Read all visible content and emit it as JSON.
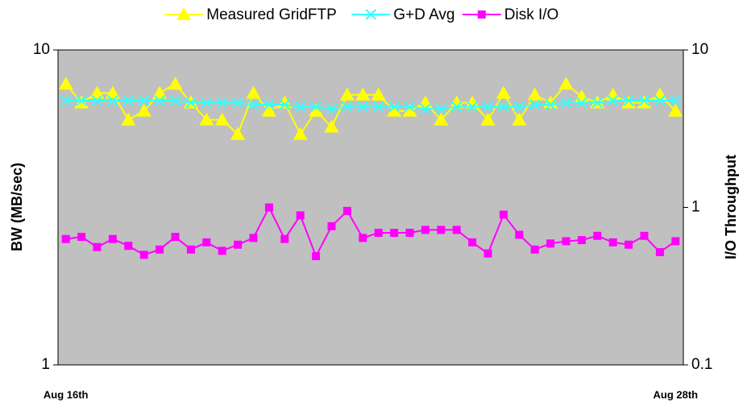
{
  "chart_data": {
    "type": "line",
    "categories": [
      "Aug 16th",
      null,
      null,
      null,
      null,
      null,
      null,
      null,
      null,
      null,
      null,
      null,
      null,
      null,
      null,
      null,
      null,
      null,
      null,
      null,
      null,
      null,
      null,
      null,
      null,
      null,
      null,
      null,
      null,
      null,
      null,
      null,
      null,
      null,
      null,
      null,
      null,
      null,
      null,
      "Aug 28th"
    ],
    "y_label": "BW (MB/sec)",
    "y2_label": "I/O Throughput",
    "yscale": "log",
    "ylim": [
      1,
      10
    ],
    "yticks": [
      1,
      10
    ],
    "y2scale": "log",
    "y2lim": [
      0.1,
      10
    ],
    "y2ticks": [
      0.1,
      1,
      10
    ],
    "background": "#c0c0c0",
    "legend": "top",
    "series": [
      {
        "name": "Measured GridFTP",
        "color": "#ffff00",
        "marker": "triangle",
        "values": [
          7.8,
          6.8,
          7.3,
          7.3,
          6.0,
          6.4,
          7.3,
          7.8,
          6.8,
          6.0,
          6.0,
          5.4,
          7.3,
          6.4,
          6.8,
          5.4,
          6.4,
          5.7,
          7.2,
          7.2,
          7.2,
          6.4,
          6.4,
          6.8,
          6.0,
          6.8,
          6.8,
          6.0,
          7.3,
          6.0,
          7.2,
          6.8,
          7.8,
          7.1,
          6.8,
          7.2,
          6.8,
          6.8,
          7.2,
          6.4
        ]
      },
      {
        "name": "G+D Avg",
        "color": "#33ffff",
        "marker": "x",
        "values": [
          6.9,
          6.9,
          6.9,
          6.9,
          6.9,
          6.9,
          6.9,
          6.9,
          6.8,
          6.8,
          6.8,
          6.8,
          6.7,
          6.7,
          6.7,
          6.6,
          6.6,
          6.5,
          6.6,
          6.6,
          6.6,
          6.6,
          6.6,
          6.5,
          6.5,
          6.6,
          6.6,
          6.6,
          6.6,
          6.6,
          6.7,
          6.7,
          6.8,
          6.8,
          6.8,
          6.9,
          6.9,
          6.9,
          6.9,
          6.9
        ]
      },
      {
        "name": "Disk I/O",
        "color": "#ff00ff",
        "marker": "square",
        "axis": "y2",
        "values": [
          0.63,
          0.65,
          0.56,
          0.63,
          0.57,
          0.5,
          0.54,
          0.65,
          0.54,
          0.6,
          0.53,
          0.58,
          0.64,
          1.0,
          0.63,
          0.89,
          0.49,
          0.76,
          0.95,
          0.64,
          0.69,
          0.69,
          0.69,
          0.72,
          0.72,
          0.72,
          0.6,
          0.51,
          0.9,
          0.67,
          0.54,
          0.59,
          0.61,
          0.62,
          0.66,
          0.6,
          0.58,
          0.66,
          0.52,
          0.61
        ]
      }
    ]
  }
}
